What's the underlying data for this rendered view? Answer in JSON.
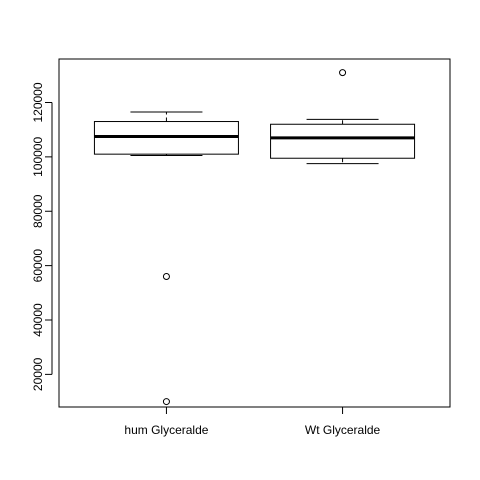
{
  "chart_data": {
    "type": "box",
    "title": "",
    "xlabel": "",
    "ylabel": "",
    "ylim": [
      8000,
      136000
    ],
    "yticks": [
      20000,
      40000,
      60000,
      80000,
      100000,
      120000
    ],
    "ytick_labels": [
      "20000",
      "40000",
      "60000",
      "80000",
      "100000",
      "120000"
    ],
    "categories": [
      "hum Glyceralde",
      "Wt Glyceralde"
    ],
    "boxes": [
      {
        "whisker_low": 100500,
        "q1": 101000,
        "median": 107500,
        "q3": 113000,
        "whisker_high": 116500,
        "outliers": [
          56000,
          10000
        ]
      },
      {
        "whisker_low": 97500,
        "q1": 99500,
        "median": 107000,
        "q3": 112000,
        "whisker_high": 113800,
        "outliers": [
          131000
        ]
      }
    ],
    "grid": false,
    "colors": {
      "line": "#000000",
      "fill": "#ffffff"
    }
  }
}
